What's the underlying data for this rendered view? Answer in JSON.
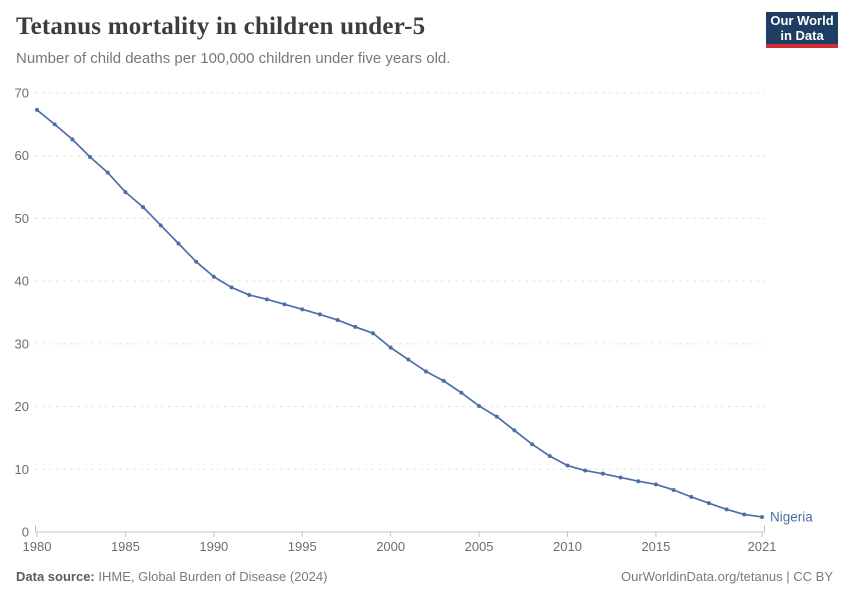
{
  "header": {
    "title": "Tetanus mortality in children under-5",
    "subtitle": "Number of child deaths per 100,000 children under five years old.",
    "logo": {
      "line1": "Our World",
      "line2": "in Data"
    }
  },
  "footer": {
    "source_label": "Data source:",
    "source_text": "IHME, Global Burden of Disease (2024)",
    "credit": "OurWorldinData.org/tetanus | CC BY"
  },
  "colors": {
    "line": "#4c6ea8",
    "gridline": "#e3e3e3",
    "axis": "#c4c4c4",
    "tick_text": "#6e6e6e",
    "logo_navy": "#1d3d63",
    "logo_red": "#d12d35",
    "title_text": "#3d3d3d",
    "subtitle_text": "#787878"
  },
  "chart_data": {
    "type": "line",
    "title": "Tetanus mortality in children under-5",
    "subtitle": "Number of child deaths per 100,000 children under five years old.",
    "xlabel": "",
    "ylabel": "",
    "xlim": [
      1980,
      2021
    ],
    "ylim": [
      0,
      70
    ],
    "x_ticks": [
      1980,
      1985,
      1990,
      1995,
      2000,
      2005,
      2010,
      2015,
      2021
    ],
    "y_ticks": [
      0,
      10,
      20,
      30,
      40,
      50,
      60,
      70
    ],
    "grid": "horizontal-dashed",
    "legend_position": "end-of-line-label",
    "series": [
      {
        "name": "Nigeria",
        "color": "#4c6ea8",
        "x": [
          1980,
          1981,
          1982,
          1983,
          1984,
          1985,
          1986,
          1987,
          1988,
          1989,
          1990,
          1991,
          1992,
          1993,
          1994,
          1995,
          1996,
          1997,
          1998,
          1999,
          2000,
          2001,
          2002,
          2003,
          2004,
          2005,
          2006,
          2007,
          2008,
          2009,
          2010,
          2011,
          2012,
          2013,
          2014,
          2015,
          2016,
          2017,
          2018,
          2019,
          2020,
          2021
        ],
        "values": [
          67.3,
          65.0,
          62.6,
          59.8,
          57.3,
          54.2,
          51.8,
          48.9,
          46.0,
          43.1,
          40.7,
          39.0,
          37.8,
          37.1,
          36.3,
          35.5,
          34.7,
          33.8,
          32.7,
          31.7,
          29.4,
          27.5,
          25.6,
          24.1,
          22.2,
          20.1,
          18.4,
          16.2,
          14.0,
          12.1,
          10.6,
          9.8,
          9.3,
          8.7,
          8.1,
          7.6,
          6.7,
          5.6,
          4.6,
          3.6,
          2.8,
          2.4
        ]
      }
    ]
  }
}
